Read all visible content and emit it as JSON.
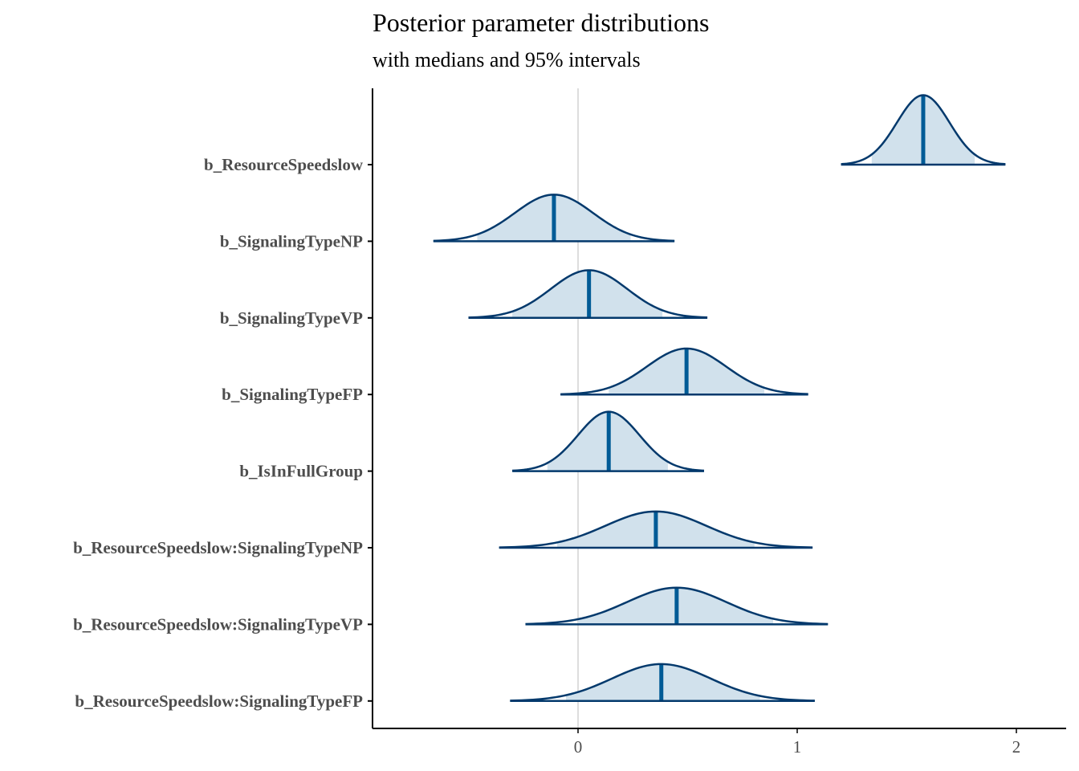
{
  "chart_data": {
    "type": "area",
    "title": "Posterior parameter distributions",
    "subtitle": "with medians and 95% intervals",
    "xlabel": "",
    "ylabel": "",
    "xlim": [
      -0.94,
      2.23
    ],
    "x_ticks": [
      "0",
      "1",
      "2"
    ],
    "x_tick_values": [
      0,
      1,
      2
    ],
    "reference_line": 0,
    "grid": false,
    "colors": {
      "fill": "#d1e1ec",
      "line": "#03396c",
      "median": "#005b96",
      "refline": "#dddddd"
    },
    "parameters": [
      {
        "name": "b_ResourceSpeedslow",
        "min": 1.2,
        "lo95": 1.34,
        "median": 1.575,
        "hi95": 1.81,
        "max": 1.95
      },
      {
        "name": "b_SignalingTypeNP",
        "min": -0.66,
        "lo95": -0.46,
        "median": -0.11,
        "hi95": 0.24,
        "max": 0.44
      },
      {
        "name": "b_SignalingTypeVP",
        "min": -0.5,
        "lo95": -0.3,
        "median": 0.05,
        "hi95": 0.385,
        "max": 0.59
      },
      {
        "name": "b_SignalingTypeFP",
        "min": -0.08,
        "lo95": 0.14,
        "median": 0.495,
        "hi95": 0.85,
        "max": 1.05
      },
      {
        "name": "b_IsInFullGroup",
        "min": -0.3,
        "lo95": -0.14,
        "median": 0.14,
        "hi95": 0.41,
        "max": 0.575
      },
      {
        "name": "b_ResourceSpeedslow:SignalingTypeNP",
        "min": -0.36,
        "lo95": -0.095,
        "median": 0.355,
        "hi95": 0.805,
        "max": 1.07
      },
      {
        "name": "b_ResourceSpeedslow:SignalingTypeVP",
        "min": -0.24,
        "lo95": 0.0,
        "median": 0.45,
        "hi95": 0.89,
        "max": 1.14
      },
      {
        "name": "b_ResourceSpeedslow:SignalingTypeFP",
        "min": -0.31,
        "lo95": -0.055,
        "median": 0.38,
        "hi95": 0.83,
        "max": 1.08
      }
    ]
  }
}
